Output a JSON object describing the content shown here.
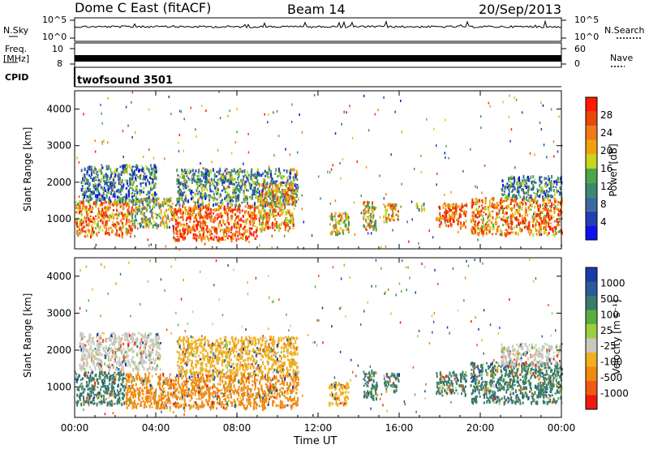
{
  "header": {
    "title": "Dome C East (fitACF)",
    "beam": "Beam 14",
    "date": "20/Sep/2013"
  },
  "status_panels": {
    "nsky_label": "N.Sky",
    "nsky_ticks": [
      "10^5",
      "10^0"
    ],
    "nsearch_label": "N.Search",
    "nsearch_ticks": [
      "10^5",
      "10^0"
    ],
    "freq_label": "Freq.",
    "freq_unit": "[MHz]",
    "freq_ticks": [
      "10",
      "8"
    ],
    "nave_label": "Nave",
    "nave_ticks": [
      "60",
      "0"
    ],
    "cpid_label": "CPID",
    "cpid_value": "twofsound 3501",
    "series_color": "#000000"
  },
  "chart_data": [
    {
      "type": "heatmap",
      "title": "",
      "ylabel": "Slant Range [km]",
      "xlabel": "",
      "x_ticks": [
        "00:00",
        "04:00",
        "08:00",
        "12:00",
        "16:00",
        "20:00",
        "00:00"
      ],
      "x_range_hours": [
        0,
        24
      ],
      "y_ticks": [
        1000,
        2000,
        3000,
        4000
      ],
      "ylim": [
        180,
        4500
      ],
      "colorbar": {
        "label": "Power [dB]",
        "ticks": [
          "4",
          "8",
          "12",
          "16",
          "20",
          "24",
          "28"
        ],
        "colors": [
          "#1010ee",
          "#2240b0",
          "#3a6aa0",
          "#3d8a6e",
          "#4aa84a",
          "#c8d41e",
          "#f0a20e",
          "#f07a14",
          "#e8480e",
          "#ff1a00"
        ]
      },
      "echo_regions": [
        {
          "t": [
            0.0,
            2.8
          ],
          "r": [
            550,
            1500
          ],
          "level": 0.75
        },
        {
          "t": [
            0.3,
            4.0
          ],
          "r": [
            1500,
            2500
          ],
          "level": 0.3
        },
        {
          "t": [
            2.8,
            4.8
          ],
          "r": [
            800,
            1600
          ],
          "level": 0.5
        },
        {
          "t": [
            4.8,
            9.0
          ],
          "r": [
            450,
            1400
          ],
          "level": 0.85
        },
        {
          "t": [
            5.0,
            11.0
          ],
          "r": [
            1400,
            2400
          ],
          "level": 0.35
        },
        {
          "t": [
            9.0,
            10.8
          ],
          "r": [
            700,
            2000
          ],
          "level": 0.7
        },
        {
          "t": [
            12.5,
            13.5
          ],
          "r": [
            600,
            1200
          ],
          "level": 0.6
        },
        {
          "t": [
            14.2,
            14.9
          ],
          "r": [
            700,
            1500
          ],
          "level": 0.6
        },
        {
          "t": [
            15.2,
            16.0
          ],
          "r": [
            950,
            1450
          ],
          "level": 0.65
        },
        {
          "t": [
            16.8,
            17.2
          ],
          "r": [
            1250,
            1450
          ],
          "level": 0.5
        },
        {
          "t": [
            17.8,
            19.3
          ],
          "r": [
            800,
            1450
          ],
          "level": 0.8
        },
        {
          "t": [
            19.5,
            24.0
          ],
          "r": [
            600,
            1600
          ],
          "level": 0.75
        },
        {
          "t": [
            21.0,
            24.0
          ],
          "r": [
            1600,
            2200
          ],
          "level": 0.3
        }
      ]
    },
    {
      "type": "heatmap",
      "title": "",
      "ylabel": "Slant Range [km]",
      "xlabel": "Time UT",
      "x_ticks": [
        "00:00",
        "04:00",
        "08:00",
        "12:00",
        "16:00",
        "20:00",
        "00:00"
      ],
      "x_range_hours": [
        0,
        24
      ],
      "y_ticks": [
        1000,
        2000,
        3000,
        4000
      ],
      "ylim": [
        180,
        4500
      ],
      "colorbar": {
        "label": "Velocity [m s⁻¹]",
        "ticks": [
          "1000",
          "500",
          "100",
          "25",
          "-25",
          "-100",
          "-500",
          "-1000"
        ],
        "colors": [
          "#1a3aa8",
          "#2a5a9a",
          "#3a7a6a",
          "#55b040",
          "#9ad040",
          "#c8c8c0",
          "#f0b020",
          "#f08a10",
          "#f05a14",
          "#ee1a10"
        ]
      },
      "echo_regions": [
        {
          "t": [
            0.0,
            2.5
          ],
          "r": [
            550,
            1450
          ],
          "color": "#3a7a6a"
        },
        {
          "t": [
            0.2,
            4.2
          ],
          "r": [
            1500,
            2500
          ],
          "color": "#c8c8c0"
        },
        {
          "t": [
            2.5,
            11.0
          ],
          "r": [
            450,
            1400
          ],
          "color": "#f08a10"
        },
        {
          "t": [
            5.0,
            11.0
          ],
          "r": [
            1400,
            2400
          ],
          "color": "#f0b020"
        },
        {
          "t": [
            12.5,
            13.5
          ],
          "r": [
            550,
            1150
          ],
          "color": "#f0b020"
        },
        {
          "t": [
            14.2,
            14.9
          ],
          "r": [
            700,
            1500
          ],
          "color": "#3a7a6a"
        },
        {
          "t": [
            15.2,
            16.0
          ],
          "r": [
            900,
            1400
          ],
          "color": "#3a7a6a"
        },
        {
          "t": [
            17.8,
            19.3
          ],
          "r": [
            800,
            1450
          ],
          "color": "#3a7a6a"
        },
        {
          "t": [
            19.5,
            24.0
          ],
          "r": [
            600,
            1700
          ],
          "color": "#3a7a6a"
        },
        {
          "t": [
            21.0,
            24.0
          ],
          "r": [
            1600,
            2200
          ],
          "color": "#c8c8c0"
        }
      ]
    }
  ]
}
